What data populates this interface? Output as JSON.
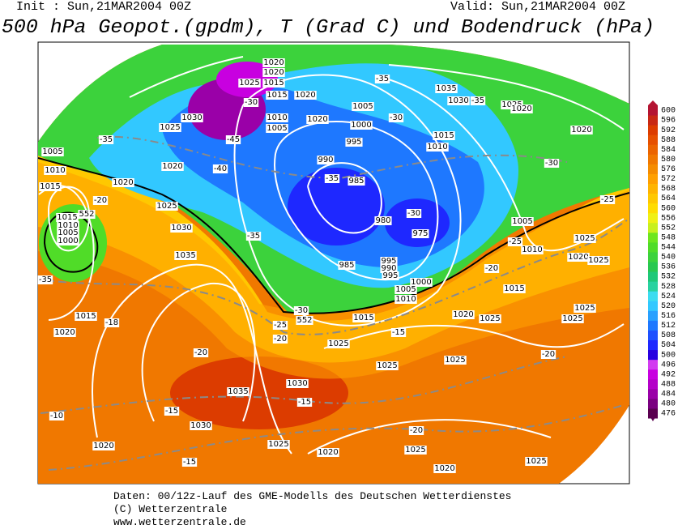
{
  "header": {
    "init": "Init : Sun,21MAR2004 00Z",
    "valid": "Valid: Sun,21MAR2004 00Z",
    "title": "500 hPa Geopot.(gpdm), T (Grad C) und Bodendruck (hPa)"
  },
  "map": {
    "isobar_labels": [
      "1020",
      "1020",
      "1025",
      "1015",
      "1015",
      "1020",
      "1030",
      "1025",
      "1010",
      "1005",
      "1020",
      "1005",
      "1000",
      "995",
      "1035",
      "1030",
      "1025",
      "1020",
      "1015",
      "1010",
      "1020",
      "1005",
      "1020",
      "1010",
      "1015",
      "1020",
      "990",
      "985",
      "1025",
      "1015",
      "1010",
      "1005",
      "1000",
      "1030",
      "980",
      "975",
      "1005",
      "1025",
      "1010",
      "1020",
      "1025",
      "985",
      "1035",
      "995",
      "990",
      "995",
      "1000",
      "1005",
      "1010",
      "1015",
      "1015",
      "1020",
      "1020",
      "1025",
      "1025",
      "1025",
      "1015",
      "1025",
      "1025",
      "1025",
      "1030",
      "1035",
      "1030",
      "1020",
      "1025",
      "1020",
      "1025",
      "1020",
      "1025"
    ],
    "temperature_labels": [
      "-35",
      "-30",
      "-35",
      "-30",
      "-45",
      "-40",
      "-35",
      "-35",
      "-30",
      "-30",
      "-25",
      "-25",
      "-20",
      "-35",
      "-35",
      "-20",
      "-18",
      "-20",
      "-25",
      "-30",
      "-20",
      "-15",
      "-20",
      "-15",
      "-15",
      "-10",
      "-15",
      "-20"
    ],
    "height_labels": [
      "552",
      "552"
    ]
  },
  "colorbar": {
    "ticks": [
      476,
      480,
      484,
      488,
      492,
      496,
      500,
      504,
      508,
      512,
      516,
      520,
      524,
      528,
      532,
      536,
      540,
      544,
      548,
      552,
      556,
      560,
      564,
      568,
      572,
      576,
      580,
      584,
      588,
      592,
      596,
      600
    ],
    "colors": [
      "#5a0050",
      "#7a0080",
      "#9a00a8",
      "#b400c8",
      "#c800e0",
      "#d23cf0",
      "#2800e0",
      "#1e28ff",
      "#1e50ff",
      "#1e78ff",
      "#28a0ff",
      "#32c8ff",
      "#3cdcf0",
      "#28d2a0",
      "#1ec878",
      "#28c850",
      "#3cd23c",
      "#50dc28",
      "#6ee61e",
      "#c8f01e",
      "#f0f014",
      "#ffdc00",
      "#ffc800",
      "#ffb400",
      "#ffa000",
      "#f58c00",
      "#f07800",
      "#eb6400",
      "#e65000",
      "#dc3c00",
      "#c82814",
      "#b41432"
    ]
  },
  "footer": {
    "lines": [
      "Daten: 00/12z-Lauf des GME-Modells des Deutschen Wetterdienstes",
      "(C) Wetterzentrale",
      "www.wetterzentrale.de"
    ]
  }
}
